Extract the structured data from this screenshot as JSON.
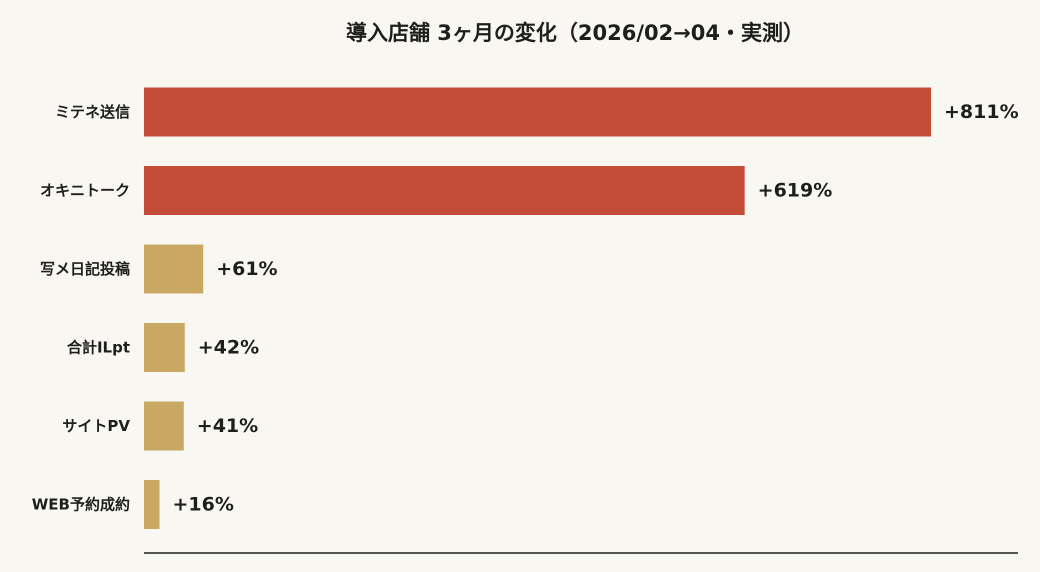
{
  "chart_data": {
    "type": "bar",
    "orientation": "horizontal",
    "title": "導入店舗 3ヶ月の変化（2026/02→04・実測）",
    "categories": [
      "ミテネ送信",
      "オキニトーク",
      "写メ日記投稿",
      "合計ILpt",
      "サイトPV",
      "WEB予約成約"
    ],
    "values": [
      811,
      619,
      61,
      42,
      41,
      16
    ],
    "value_labels": [
      "+811%",
      "+619%",
      "+61%",
      "+42%",
      "+41%",
      "+16%"
    ],
    "xlim": [
      0,
      811
    ],
    "grid": false,
    "colors": {
      "highlight": "#c44d3a",
      "normal": "#c9a863",
      "axis": "#1e1e1e",
      "background": "#f9f7f2"
    },
    "highlight_categories": [
      "ミテネ送信",
      "オキニトーク"
    ]
  }
}
